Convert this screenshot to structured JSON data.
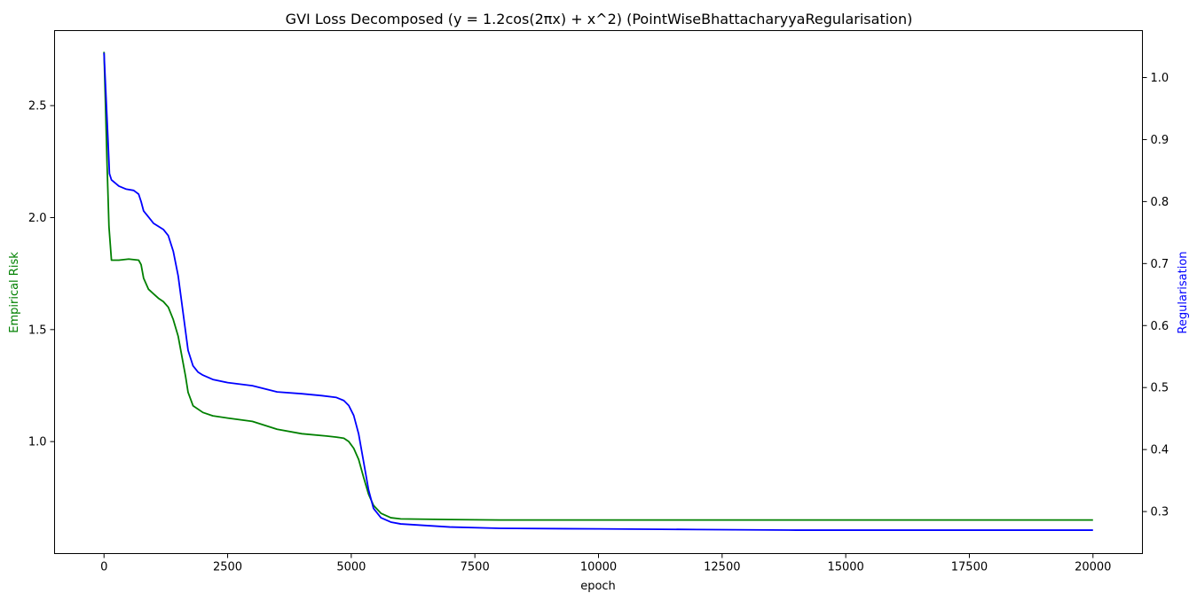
{
  "chart_data": {
    "type": "line",
    "title": "GVI Loss Decomposed ($y = 1.2\\cos(2\\pi x)$ + x^2) (PointWiseBhattacharyyaRegularisation)",
    "title_display": "GVI Loss Decomposed (y = 1.2cos(2πx) + x^2) (PointWiseBhattacharyyaRegularisation)",
    "xlabel": "epoch",
    "ylabel_left": "Empirical Risk",
    "ylabel_right": "Regularisation",
    "xlim": [
      -1000,
      21000
    ],
    "ylim_left": [
      0.5,
      2.835
    ],
    "ylim_right": [
      0.2322,
      1.0758
    ],
    "x_ticks": [
      0,
      2500,
      5000,
      7500,
      10000,
      12500,
      15000,
      17500,
      20000
    ],
    "x_tick_labels": [
      "0",
      "2500",
      "5000",
      "7500",
      "10000",
      "12500",
      "15000",
      "17500",
      "20000"
    ],
    "y_left_ticks": [
      1.0,
      1.5,
      2.0,
      2.5
    ],
    "y_left_tick_labels": [
      "1.0",
      "1.5",
      "2.0",
      "2.5"
    ],
    "y_right_ticks": [
      0.3,
      0.4,
      0.5,
      0.6,
      0.7,
      0.8,
      0.9,
      1.0
    ],
    "y_right_tick_labels": [
      "0.3",
      "0.4",
      "0.5",
      "0.6",
      "0.7",
      "0.8",
      "0.9",
      "1.0"
    ],
    "grid": false,
    "series": [
      {
        "name": "Empirical Risk",
        "axis": "left",
        "color": "#008000",
        "x": [
          0,
          30,
          60,
          100,
          150,
          300,
          500,
          700,
          750,
          800,
          900,
          1000,
          1100,
          1200,
          1300,
          1400,
          1500,
          1600,
          1650,
          1700,
          1800,
          2000,
          2200,
          2500,
          3000,
          3500,
          4000,
          4500,
          4700,
          4850,
          4950,
          5050,
          5150,
          5250,
          5350,
          5450,
          5600,
          5800,
          6000,
          7000,
          8000,
          10000,
          12000,
          14000,
          16000,
          18000,
          20000
        ],
        "y": [
          2.74,
          2.5,
          2.25,
          1.96,
          1.81,
          1.81,
          1.815,
          1.81,
          1.79,
          1.73,
          1.68,
          1.66,
          1.64,
          1.625,
          1.6,
          1.545,
          1.47,
          1.35,
          1.29,
          1.22,
          1.16,
          1.13,
          1.115,
          1.105,
          1.09,
          1.055,
          1.035,
          1.025,
          1.02,
          1.015,
          1.0,
          0.97,
          0.92,
          0.84,
          0.765,
          0.715,
          0.68,
          0.66,
          0.655,
          0.652,
          0.65,
          0.65,
          0.65,
          0.65,
          0.65,
          0.65,
          0.65
        ]
      },
      {
        "name": "Regularisation",
        "axis": "right",
        "color": "#0000ff",
        "x": [
          0,
          40,
          80,
          110,
          150,
          300,
          450,
          600,
          700,
          750,
          800,
          900,
          1000,
          1200,
          1300,
          1400,
          1500,
          1600,
          1700,
          1800,
          1900,
          2000,
          2200,
          2500,
          3000,
          3500,
          4000,
          4400,
          4700,
          4850,
          4950,
          5050,
          5150,
          5250,
          5350,
          5450,
          5600,
          5800,
          6000,
          7000,
          8000,
          10000,
          12000,
          14000,
          16000,
          18000,
          20000
        ],
        "y": [
          1.04,
          0.97,
          0.9,
          0.845,
          0.835,
          0.825,
          0.82,
          0.818,
          0.812,
          0.8,
          0.785,
          0.775,
          0.765,
          0.755,
          0.745,
          0.72,
          0.68,
          0.62,
          0.56,
          0.535,
          0.525,
          0.52,
          0.513,
          0.508,
          0.503,
          0.493,
          0.49,
          0.487,
          0.484,
          0.479,
          0.471,
          0.455,
          0.425,
          0.38,
          0.335,
          0.305,
          0.29,
          0.283,
          0.28,
          0.275,
          0.273,
          0.272,
          0.271,
          0.27,
          0.27,
          0.27,
          0.27
        ]
      }
    ]
  }
}
